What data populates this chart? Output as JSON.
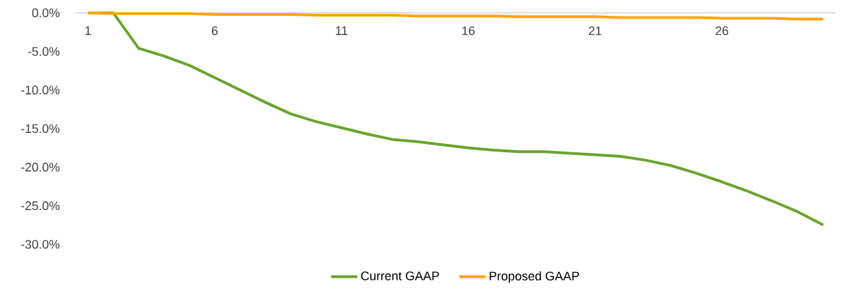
{
  "chart_data": {
    "type": "line",
    "x": [
      1,
      2,
      3,
      4,
      5,
      6,
      7,
      8,
      9,
      10,
      11,
      12,
      13,
      14,
      15,
      16,
      17,
      18,
      19,
      20,
      21,
      22,
      23,
      24,
      25,
      26,
      27,
      28,
      29,
      30
    ],
    "series": [
      {
        "name": "Current GAAP",
        "color": "#6aa32e",
        "values": [
          0,
          0,
          -4.6,
          -5.6,
          -6.8,
          -8.4,
          -10.0,
          -11.6,
          -13.1,
          -14.1,
          -14.9,
          -15.7,
          -16.4,
          -16.7,
          -17.1,
          -17.5,
          -17.8,
          -18.0,
          -18.0,
          -18.2,
          -18.4,
          -18.6,
          -19.1,
          -19.8,
          -20.8,
          -21.9,
          -23.1,
          -24.4,
          -25.8,
          -27.5
        ]
      },
      {
        "name": "Proposed GAAP",
        "color": "#ffa500",
        "values": [
          0,
          -0.1,
          -0.1,
          -0.1,
          -0.1,
          -0.2,
          -0.2,
          -0.2,
          -0.2,
          -0.3,
          -0.3,
          -0.3,
          -0.3,
          -0.4,
          -0.4,
          -0.4,
          -0.4,
          -0.5,
          -0.5,
          -0.5,
          -0.5,
          -0.6,
          -0.6,
          -0.6,
          -0.6,
          -0.7,
          -0.7,
          -0.7,
          -0.8,
          -0.8
        ]
      }
    ],
    "xlim": [
      0.5,
      30.5
    ],
    "xticks": [
      1,
      6,
      11,
      16,
      21,
      26
    ],
    "ylim": [
      -30,
      0
    ],
    "yticks": [
      {
        "value": 0,
        "label": "0.0%"
      },
      {
        "value": -5,
        "label": "-5.0%"
      },
      {
        "value": -10,
        "label": "-10.0%"
      },
      {
        "value": -15,
        "label": "-15.0%"
      },
      {
        "value": -20,
        "label": "-20.0%"
      },
      {
        "value": -25,
        "label": "-25.0%"
      },
      {
        "value": -30,
        "label": "-30.0%"
      }
    ],
    "legend": "bottom",
    "marker": "none",
    "line_style": "solid",
    "grid": false
  }
}
